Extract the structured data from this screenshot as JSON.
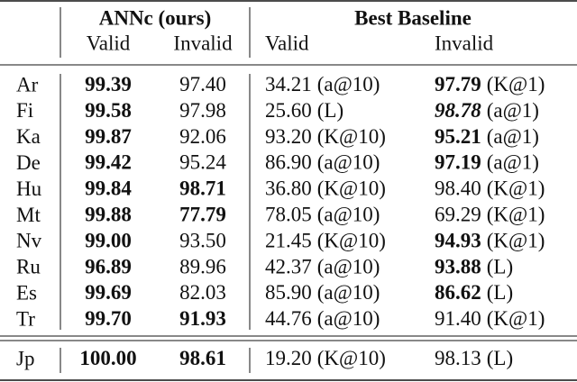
{
  "header": {
    "group1": "ANNc (ours)",
    "group2": "Best Baseline",
    "columns": [
      "Valid",
      "Invalid",
      "Valid",
      "Invalid"
    ]
  },
  "table": {
    "rows": [
      {
        "label": "Ar",
        "cells": [
          {
            "text": "99.39",
            "bold": true
          },
          {
            "text": "97.40"
          },
          {
            "text": "34.21",
            "note": "(a@10)"
          },
          {
            "text": "97.79",
            "note": "(K@1)",
            "bold": true
          }
        ]
      },
      {
        "label": "Fi",
        "cells": [
          {
            "text": "99.58",
            "bold": true
          },
          {
            "text": "97.98"
          },
          {
            "text": "25.60",
            "note": "(L)"
          },
          {
            "text": "98.78",
            "note": "(a@1)",
            "bold": true,
            "italic": true
          }
        ]
      },
      {
        "label": "Ka",
        "cells": [
          {
            "text": "99.87",
            "bold": true
          },
          {
            "text": "92.06"
          },
          {
            "text": "93.20",
            "note": "(K@10)"
          },
          {
            "text": "95.21",
            "note": "(a@1)",
            "bold": true
          }
        ]
      },
      {
        "label": "De",
        "cells": [
          {
            "text": "99.42",
            "bold": true
          },
          {
            "text": "95.24"
          },
          {
            "text": "86.90",
            "note": "(a@10)"
          },
          {
            "text": "97.19",
            "note": "(a@1)",
            "bold": true
          }
        ]
      },
      {
        "label": "Hu",
        "cells": [
          {
            "text": "99.84",
            "bold": true
          },
          {
            "text": "98.71",
            "bold": true
          },
          {
            "text": "36.80",
            "note": "(K@10)"
          },
          {
            "text": "98.40",
            "note": "(K@1)"
          }
        ]
      },
      {
        "label": "Mt",
        "cells": [
          {
            "text": "99.88",
            "bold": true
          },
          {
            "text": "77.79",
            "bold": true
          },
          {
            "text": "78.05",
            "note": "(a@10)"
          },
          {
            "text": "69.29",
            "note": "(K@1)"
          }
        ]
      },
      {
        "label": "Nv",
        "cells": [
          {
            "text": "99.00",
            "bold": true
          },
          {
            "text": "93.50"
          },
          {
            "text": "21.45",
            "note": "(K@10)"
          },
          {
            "text": "94.93",
            "note": "(K@1)",
            "bold": true
          }
        ]
      },
      {
        "label": "Ru",
        "cells": [
          {
            "text": "96.89",
            "bold": true
          },
          {
            "text": "89.96"
          },
          {
            "text": "42.37",
            "note": "(a@10)"
          },
          {
            "text": "93.88",
            "note": "(L)",
            "bold": true
          }
        ]
      },
      {
        "label": "Es",
        "cells": [
          {
            "text": "99.69",
            "bold": true
          },
          {
            "text": "82.03"
          },
          {
            "text": "85.90",
            "note": "(a@10)"
          },
          {
            "text": "86.62",
            "note": "(L)",
            "bold": true
          }
        ]
      },
      {
        "label": "Tr",
        "cells": [
          {
            "text": "99.70",
            "bold": true
          },
          {
            "text": "91.93",
            "bold": true
          },
          {
            "text": "44.76",
            "note": "(a@10)"
          },
          {
            "text": "91.40",
            "note": "(K@1)"
          }
        ]
      },
      {
        "label": "Jp",
        "cells": [
          {
            "text": "100.00",
            "bold": true
          },
          {
            "text": "98.61",
            "bold": true
          },
          {
            "text": "19.20",
            "note": "(K@10)"
          },
          {
            "text": "98.13",
            "note": "(L)"
          }
        ]
      }
    ]
  }
}
